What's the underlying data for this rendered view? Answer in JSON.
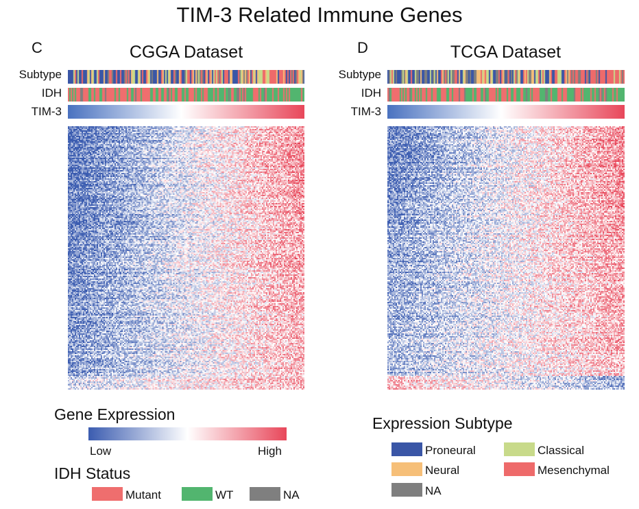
{
  "title": "TIM-3 Related Immune Genes",
  "panels": [
    {
      "letter": "C",
      "dataset": "CGGA Dataset",
      "row_labels": {
        "subtype": "Subtype",
        "idh": "IDH",
        "tim3": "TIM-3"
      }
    },
    {
      "letter": "D",
      "dataset": "TCGA Dataset",
      "row_labels": {
        "subtype": "Subtype",
        "idh": "IDH",
        "tim3": "TIM-3"
      }
    }
  ],
  "gene_expression_legend": {
    "title": "Gene Expression",
    "low_label": "Low",
    "high_label": "High",
    "low_color": "#3b5cb0",
    "mid_color": "#ffffff",
    "high_color": "#e8475a"
  },
  "idh_legend": {
    "title": "IDH Status",
    "items": [
      {
        "label": "Mutant",
        "color": "#ef6e6e"
      },
      {
        "label": "WT",
        "color": "#52b56f"
      },
      {
        "label": "NA",
        "color": "#7f7f7f"
      }
    ]
  },
  "subtype_legend": {
    "title": "Expression Subtype",
    "items": [
      {
        "label": "Proneural",
        "color": "#3a56a6"
      },
      {
        "label": "Classical",
        "color": "#c8da8a"
      },
      {
        "label": "Neural",
        "color": "#f6bf78"
      },
      {
        "label": "Mesenchymal",
        "color": "#ee6a6a"
      },
      {
        "label": "NA",
        "color": "#7f7f7f"
      }
    ]
  }
}
